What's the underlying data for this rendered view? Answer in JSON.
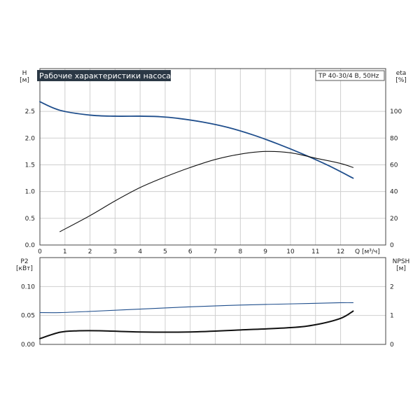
{
  "chart_data": [
    {
      "type": "line",
      "title": "Рабочие характеристики насоса",
      "subtitle": "TP 40-30/4 B, 50Hz",
      "xlabel": "Q [м³/ч]",
      "ylabel": "H\n[м]",
      "y2label": "eta\n[%]",
      "xlim": [
        0,
        13.8
      ],
      "ylim": [
        0,
        3.3
      ],
      "y2lim": [
        0,
        132
      ],
      "x_ticks": [
        "0",
        "1",
        "2",
        "3",
        "4",
        "5",
        "6",
        "7",
        "8",
        "9",
        "10",
        "11",
        "12"
      ],
      "y_ticks": [
        "0.0",
        "0.5",
        "1.0",
        "1.5",
        "2.0",
        "2.5"
      ],
      "y2_ticks": [
        "0",
        "20",
        "40",
        "60",
        "80",
        "100"
      ],
      "grid": true,
      "series": [
        {
          "axis": "left",
          "color": "#1f4e8c",
          "x": [
            0,
            0.8,
            2,
            3,
            4,
            4.8,
            5.5,
            6.5,
            7.5,
            8.5,
            9.5,
            10.5,
            11.5,
            12.5
          ],
          "values": [
            2.68,
            2.52,
            2.43,
            2.41,
            2.41,
            2.4,
            2.37,
            2.3,
            2.2,
            2.06,
            1.89,
            1.7,
            1.49,
            1.25
          ]
        },
        {
          "axis": "right",
          "color": "#111111",
          "x": [
            0.8,
            2,
            3,
            4,
            5,
            6,
            7,
            8,
            9,
            10,
            11,
            12,
            12.5
          ],
          "values": [
            10,
            22,
            33,
            43,
            51,
            58,
            64,
            68,
            70,
            69,
            65,
            61,
            58
          ]
        }
      ]
    },
    {
      "type": "line",
      "ylabel": "P2\n[кВт]",
      "y2label": "NPSH\n[м]",
      "xlim": [
        0,
        13.8
      ],
      "ylim": [
        0,
        0.15
      ],
      "y2lim": [
        0,
        3
      ],
      "y_ticks": [
        "0.00",
        "0.05",
        "0.10"
      ],
      "y2_ticks": [
        "0",
        "1",
        "2"
      ],
      "grid": true,
      "series": [
        {
          "axis": "left",
          "color": "#1f4e8c",
          "x": [
            0,
            0.8,
            2,
            4,
            6,
            8,
            10,
            12,
            12.5
          ],
          "values": [
            0.055,
            0.055,
            0.057,
            0.061,
            0.065,
            0.068,
            0.07,
            0.072,
            0.072
          ]
        },
        {
          "axis": "right",
          "color": "#111111",
          "x": [
            0,
            0.8,
            1.5,
            2.5,
            4,
            6,
            8,
            10,
            11,
            12,
            12.5
          ],
          "values": [
            0.2,
            0.42,
            0.47,
            0.47,
            0.43,
            0.43,
            0.5,
            0.58,
            0.68,
            0.9,
            1.15
          ]
        }
      ]
    }
  ]
}
